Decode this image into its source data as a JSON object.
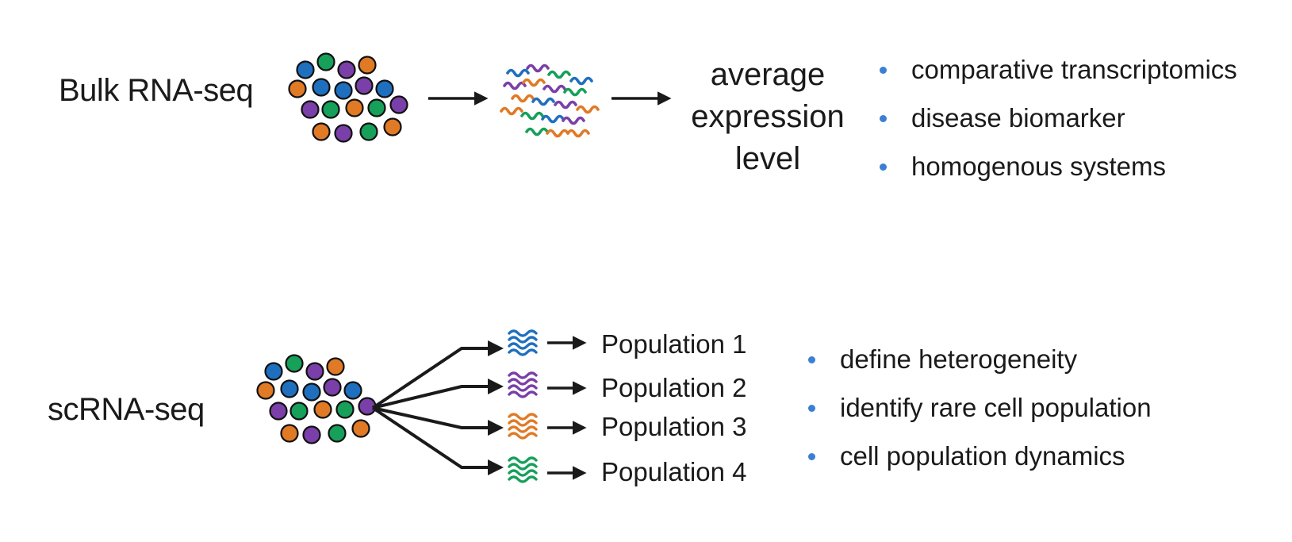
{
  "bulk": {
    "label": "Bulk RNA-seq",
    "result_lines": [
      "average",
      "expression",
      "level"
    ],
    "bullets": [
      "comparative transcriptomics",
      "disease biomarker",
      "homogenous systems"
    ]
  },
  "sc": {
    "label": "scRNA-seq",
    "populations": [
      "Population 1",
      "Population 2",
      "Population 3",
      "Population 4"
    ],
    "bullets": [
      "define heterogeneity",
      "identify rare cell population",
      "cell population dynamics"
    ]
  },
  "colors": {
    "blue": "#1f6fbf",
    "green": "#16a05a",
    "purple": "#7a3fa8",
    "orange": "#e07a25",
    "bullet": "#3b7fd4",
    "arrow": "#1a1a1a"
  }
}
